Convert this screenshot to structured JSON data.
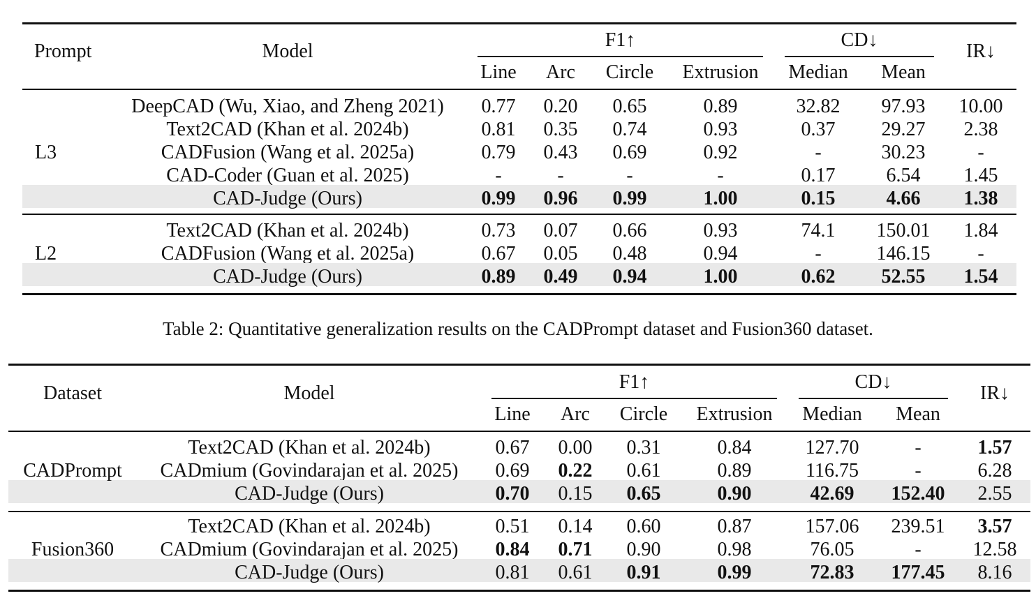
{
  "table1": {
    "headers": {
      "prompt": "Prompt",
      "model": "Model",
      "f1": "F1↑",
      "cd": "CD↓",
      "ir": "IR↓",
      "line": "Line",
      "arc": "Arc",
      "circle": "Circle",
      "extrusion": "Extrusion",
      "median": "Median",
      "mean": "Mean"
    },
    "groups": [
      {
        "label": "L3",
        "rows": [
          {
            "model": "DeepCAD (Wu, Xiao, and Zheng 2021)",
            "cells": [
              "0.77",
              "0.20",
              "0.65",
              "0.89",
              "32.82",
              "97.93",
              "10.00"
            ],
            "bold": [],
            "highlight": false
          },
          {
            "model": "Text2CAD (Khan et al. 2024b)",
            "cells": [
              "0.81",
              "0.35",
              "0.74",
              "0.93",
              "0.37",
              "29.27",
              "2.38"
            ],
            "bold": [],
            "highlight": false
          },
          {
            "model": "CADFusion (Wang et al. 2025a)",
            "cells": [
              "0.79",
              "0.43",
              "0.69",
              "0.92",
              "-",
              "30.23",
              "-"
            ],
            "bold": [],
            "highlight": false
          },
          {
            "model": "CAD-Coder (Guan et al. 2025)",
            "cells": [
              "-",
              "-",
              "-",
              "-",
              "0.17",
              "6.54",
              "1.45"
            ],
            "bold": [],
            "highlight": false
          },
          {
            "model": "CAD-Judge (Ours)",
            "cells": [
              "0.99",
              "0.96",
              "0.99",
              "1.00",
              "0.15",
              "4.66",
              "1.38"
            ],
            "bold": [
              0,
              1,
              2,
              3,
              4,
              5,
              6
            ],
            "highlight": true
          }
        ]
      },
      {
        "label": "L2",
        "rows": [
          {
            "model": "Text2CAD (Khan et al. 2024b)",
            "cells": [
              "0.73",
              "0.07",
              "0.66",
              "0.93",
              "74.1",
              "150.01",
              "1.84"
            ],
            "bold": [],
            "highlight": false
          },
          {
            "model": "CADFusion (Wang et al. 2025a)",
            "cells": [
              "0.67",
              "0.05",
              "0.48",
              "0.94",
              "-",
              "146.15",
              "-"
            ],
            "bold": [],
            "highlight": false
          },
          {
            "model": "CAD-Judge (Ours)",
            "cells": [
              "0.89",
              "0.49",
              "0.94",
              "1.00",
              "0.62",
              "52.55",
              "1.54"
            ],
            "bold": [
              0,
              1,
              2,
              3,
              4,
              5,
              6
            ],
            "highlight": true
          }
        ]
      }
    ]
  },
  "caption": "Table 2: Quantitative generalization results on the CADPrompt dataset and Fusion360 dataset.",
  "table2": {
    "headers": {
      "prompt": "Dataset",
      "model": "Model",
      "f1": "F1↑",
      "cd": "CD↓",
      "ir": "IR↓",
      "line": "Line",
      "arc": "Arc",
      "circle": "Circle",
      "extrusion": "Extrusion",
      "median": "Median",
      "mean": "Mean"
    },
    "groups": [
      {
        "label": "CADPrompt",
        "rows": [
          {
            "model": "Text2CAD (Khan et al. 2024b)",
            "cells": [
              "0.67",
              "0.00",
              "0.31",
              "0.84",
              "127.70",
              "-",
              "1.57"
            ],
            "bold": [
              6
            ],
            "highlight": false
          },
          {
            "model": "CADmium (Govindarajan et al. 2025)",
            "cells": [
              "0.69",
              "0.22",
              "0.61",
              "0.89",
              "116.75",
              "-",
              "6.28"
            ],
            "bold": [
              1
            ],
            "highlight": false
          },
          {
            "model": "CAD-Judge (Ours)",
            "cells": [
              "0.70",
              "0.15",
              "0.65",
              "0.90",
              "42.69",
              "152.40",
              "2.55"
            ],
            "bold": [
              0,
              2,
              3,
              4,
              5
            ],
            "highlight": true
          }
        ]
      },
      {
        "label": "Fusion360",
        "rows": [
          {
            "model": "Text2CAD (Khan et al. 2024b)",
            "cells": [
              "0.51",
              "0.14",
              "0.60",
              "0.87",
              "157.06",
              "239.51",
              "3.57"
            ],
            "bold": [
              6
            ],
            "highlight": false
          },
          {
            "model": "CADmium (Govindarajan et al. 2025)",
            "cells": [
              "0.84",
              "0.71",
              "0.90",
              "0.98",
              "76.05",
              "-",
              "12.58"
            ],
            "bold": [
              0,
              1
            ],
            "highlight": false
          },
          {
            "model": "CAD-Judge (Ours)",
            "cells": [
              "0.81",
              "0.61",
              "0.91",
              "0.99",
              "72.83",
              "177.45",
              "8.16"
            ],
            "bold": [
              2,
              3,
              4,
              5
            ],
            "highlight": true
          }
        ]
      }
    ]
  }
}
